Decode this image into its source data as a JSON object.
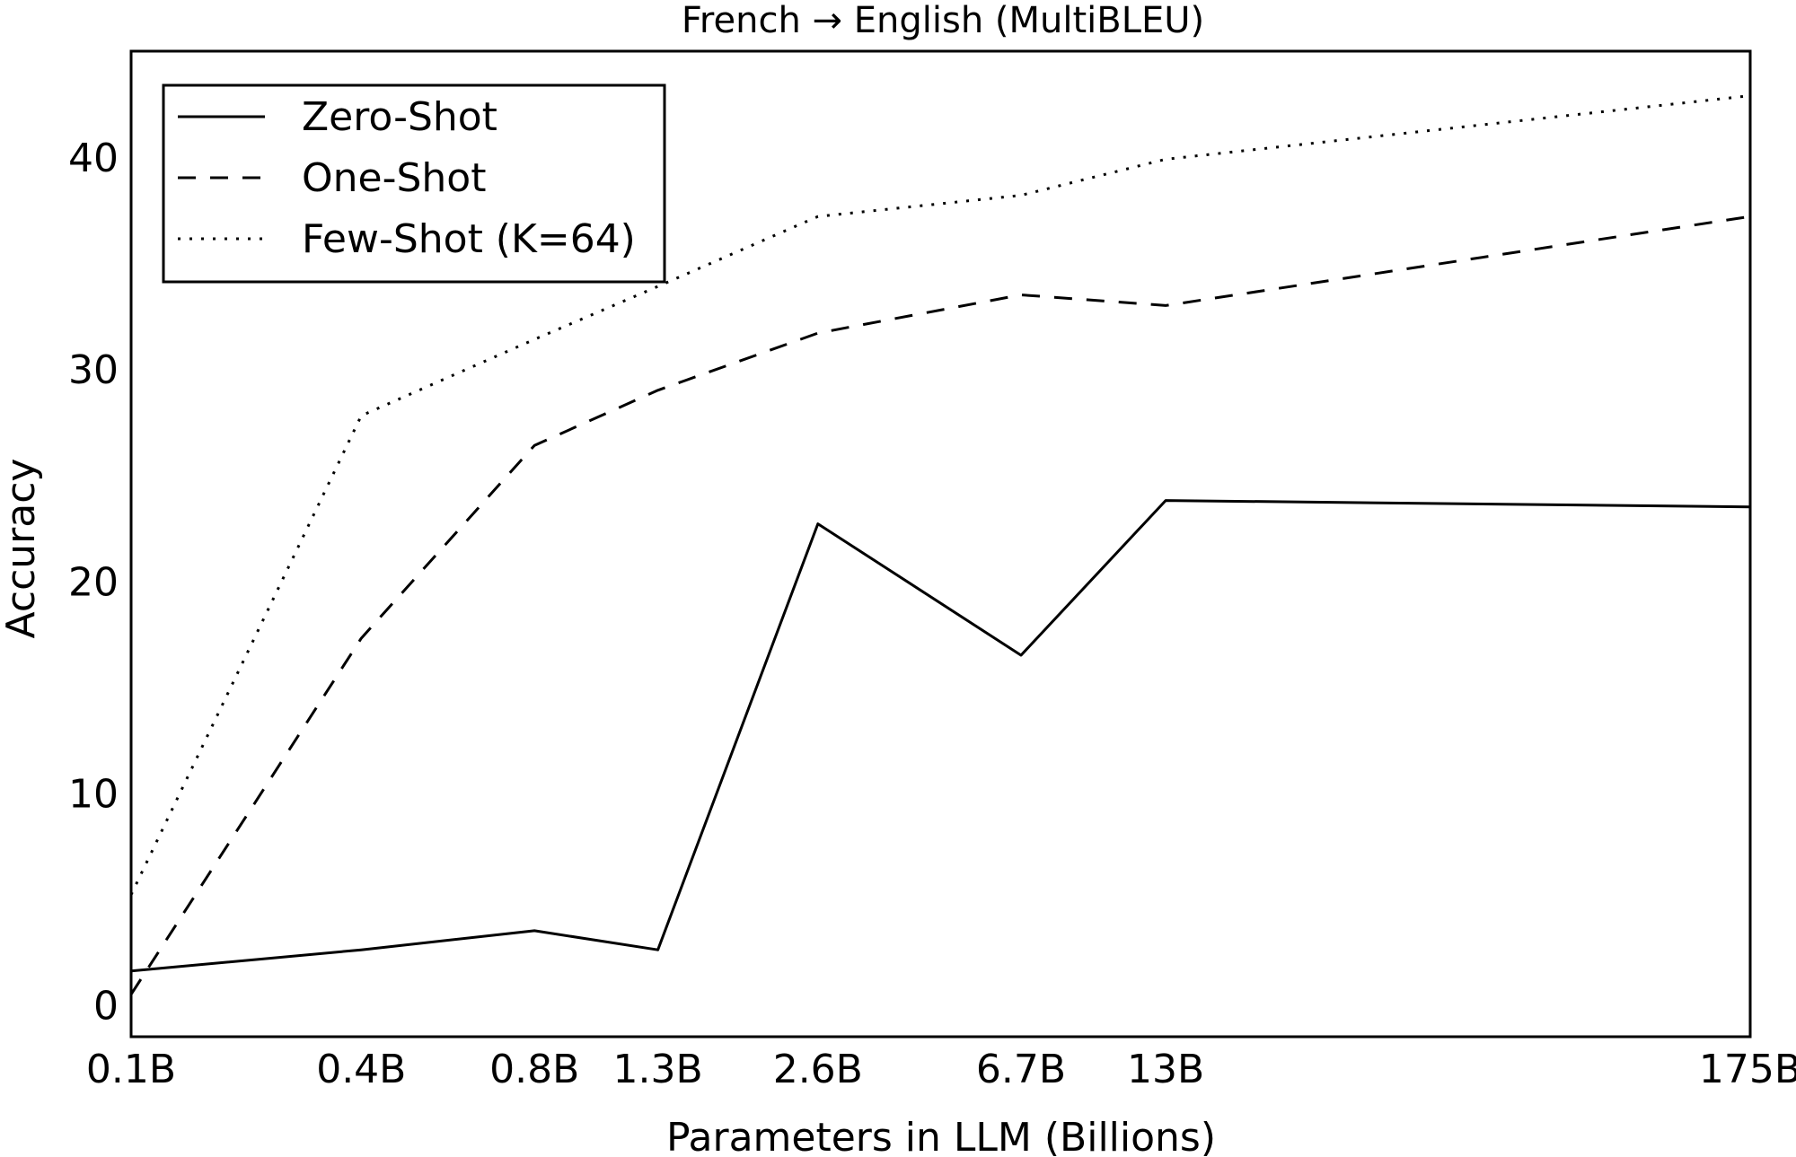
{
  "chart_data": {
    "type": "line",
    "title": "French → English (MultiBLEU)",
    "xlabel": "Parameters in LLM (Billions)",
    "ylabel": "Accuracy",
    "categories": [
      "0.1B",
      "0.4B",
      "0.8B",
      "1.3B",
      "2.6B",
      "6.7B",
      "13B",
      "175B"
    ],
    "x_scale": "log",
    "x_values": [
      0.125,
      0.35,
      0.76,
      1.32,
      2.7,
      6.7,
      12.8,
      175
    ],
    "y_ticks": [
      0,
      10,
      20,
      30,
      40
    ],
    "ylim": [
      -1.5,
      45
    ],
    "grid": false,
    "legend_position": "top-left",
    "series": [
      {
        "name": "Zero-Shot",
        "style": "solid",
        "color": "#000000",
        "values": [
          1.6,
          2.6,
          3.5,
          2.6,
          22.7,
          16.5,
          23.8,
          23.5
        ]
      },
      {
        "name": "One-Shot",
        "style": "dashed",
        "color": "#000000",
        "values": [
          0.5,
          17.3,
          26.4,
          29.0,
          31.7,
          33.5,
          33.0,
          37.2
        ]
      },
      {
        "name": "Few-Shot (K=64)",
        "style": "dotted",
        "color": "#000000",
        "values": [
          5.2,
          27.8,
          31.4,
          33.9,
          37.2,
          38.2,
          39.9,
          42.9
        ]
      }
    ]
  }
}
